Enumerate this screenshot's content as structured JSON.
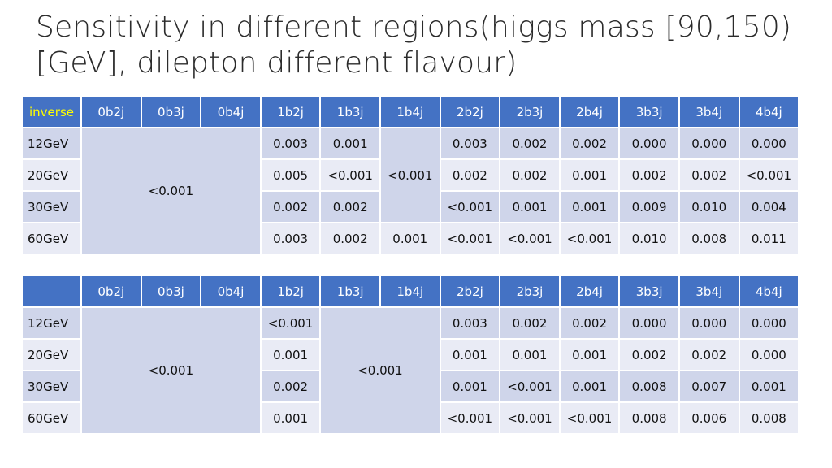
{
  "title": "Sensitivity in different regions(higgs mass [90,150)[GeV], dilepton different flavour)",
  "colors": {
    "header_bg": "#4472c4",
    "row_odd": "#cfd5ea",
    "row_even": "#e9ebf5",
    "inverse_label": "#ffff00"
  },
  "table1": {
    "corner": "inverse",
    "headers": [
      "0b2j",
      "0b3j",
      "0b4j",
      "1b2j",
      "1b3j",
      "1b4j",
      "2b2j",
      "2b3j",
      "2b4j",
      "3b3j",
      "3b4j",
      "4b4j"
    ],
    "row_labels": [
      "12GeV",
      "20GeV",
      "30GeV",
      "60GeV"
    ],
    "merged_0b": "<0.001",
    "merged_1b4j": "<0.001",
    "r0": {
      "1b2j": "0.003",
      "1b3j": "0.001",
      "2b2j": "0.003",
      "2b3j": "0.002",
      "2b4j": "0.002",
      "3b3j": "0.000",
      "3b4j": "0.000",
      "4b4j": "0.000"
    },
    "r1": {
      "1b2j": "0.005",
      "1b3j": "<0.001",
      "2b2j": "0.002",
      "2b3j": "0.002",
      "2b4j": "0.001",
      "3b3j": "0.002",
      "3b4j": "0.002",
      "4b4j": "<0.001"
    },
    "r2": {
      "1b2j": "0.002",
      "1b3j": "0.002",
      "2b2j": "<0.001",
      "2b3j": "0.001",
      "2b4j": "0.001",
      "3b3j": "0.009",
      "3b4j": "0.010",
      "4b4j": "0.004"
    },
    "r3": {
      "1b2j": "0.003",
      "1b3j": "0.002",
      "1b4j": "0.001",
      "2b2j": "<0.001",
      "2b3j": "<0.001",
      "2b4j": "<0.001",
      "3b3j": "0.010",
      "3b4j": "0.008",
      "4b4j": "0.011"
    }
  },
  "table2": {
    "corner": "",
    "headers": [
      "0b2j",
      "0b3j",
      "0b4j",
      "1b2j",
      "1b3j",
      "1b4j",
      "2b2j",
      "2b3j",
      "2b4j",
      "3b3j",
      "3b4j",
      "4b4j"
    ],
    "row_labels": [
      "12GeV",
      "20GeV",
      "30GeV",
      "60GeV"
    ],
    "merged_0b": "<0.001",
    "merged_1b3j_1b4j": "<0.001",
    "r0": {
      "1b2j": "<0.001",
      "2b2j": "0.003",
      "2b3j": "0.002",
      "2b4j": "0.002",
      "3b3j": "0.000",
      "3b4j": "0.000",
      "4b4j": "0.000"
    },
    "r1": {
      "1b2j": "0.001",
      "2b2j": "0.001",
      "2b3j": "0.001",
      "2b4j": "0.001",
      "3b3j": "0.002",
      "3b4j": "0.002",
      "4b4j": "0.000"
    },
    "r2": {
      "1b2j": "0.002",
      "2b2j": "0.001",
      "2b3j": "<0.001",
      "2b4j": "0.001",
      "3b3j": "0.008",
      "3b4j": "0.007",
      "4b4j": "0.001"
    },
    "r3": {
      "1b2j": "0.001",
      "2b2j": "<0.001",
      "2b3j": "<0.001",
      "2b4j": "<0.001",
      "3b3j": "0.008",
      "3b4j": "0.006",
      "4b4j": "0.008"
    }
  }
}
